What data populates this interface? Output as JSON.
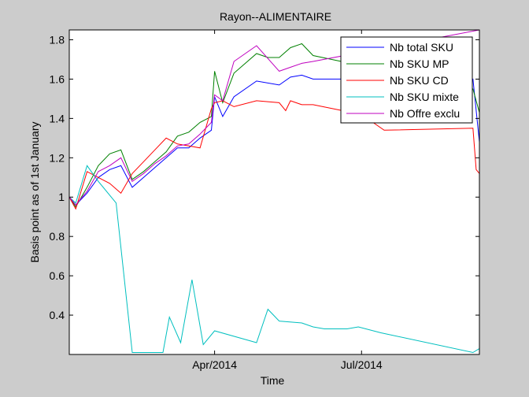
{
  "chart_data": {
    "type": "line",
    "title": "Rayon--ALIMENTAIRE",
    "xlabel": "Time",
    "ylabel": "Basis point as of 1st January",
    "x_tick_labels": [
      "Apr/2014",
      "Jul/2014"
    ],
    "x_tick_values": [
      "2014-04-01",
      "2014-07-01"
    ],
    "y_ticks": [
      0.4,
      0.6,
      0.8,
      1.0,
      1.2,
      1.4,
      1.6,
      1.8
    ],
    "y_tick_labels": [
      "0.4",
      "0.6",
      "0.8",
      "1",
      "1.2",
      "1.4",
      "1.6",
      "1.8"
    ],
    "ylim": [
      0.2,
      1.85
    ],
    "xlim": [
      "2014-01-01",
      "2014-09-12"
    ],
    "grid": false,
    "legend_position": "top-right",
    "series": [
      {
        "name": "Nb total SKU",
        "color": "#0000ff",
        "points": [
          [
            "2014-01-01",
            1.0
          ],
          [
            "2014-01-05",
            0.96
          ],
          [
            "2014-01-12",
            1.02
          ],
          [
            "2014-01-19",
            1.1
          ],
          [
            "2014-01-26",
            1.14
          ],
          [
            "2014-02-02",
            1.16
          ],
          [
            "2014-02-09",
            1.05
          ],
          [
            "2014-02-16",
            1.1
          ],
          [
            "2014-02-23",
            1.15
          ],
          [
            "2014-03-02",
            1.2
          ],
          [
            "2014-03-09",
            1.25
          ],
          [
            "2014-03-16",
            1.25
          ],
          [
            "2014-03-23",
            1.3
          ],
          [
            "2014-03-30",
            1.34
          ],
          [
            "2014-04-01",
            1.51
          ],
          [
            "2014-04-06",
            1.41
          ],
          [
            "2014-04-13",
            1.51
          ],
          [
            "2014-04-27",
            1.59
          ],
          [
            "2014-05-11",
            1.57
          ],
          [
            "2014-05-18",
            1.61
          ],
          [
            "2014-05-25",
            1.62
          ],
          [
            "2014-06-01",
            1.6
          ],
          [
            "2014-09-08",
            1.6
          ],
          [
            "2014-09-12",
            1.28
          ]
        ]
      },
      {
        "name": "Nb SKU MP",
        "color": "#008000",
        "points": [
          [
            "2014-01-01",
            1.0
          ],
          [
            "2014-01-05",
            0.95
          ],
          [
            "2014-01-12",
            1.05
          ],
          [
            "2014-01-19",
            1.16
          ],
          [
            "2014-01-26",
            1.22
          ],
          [
            "2014-02-02",
            1.24
          ],
          [
            "2014-02-09",
            1.09
          ],
          [
            "2014-02-16",
            1.13
          ],
          [
            "2014-02-23",
            1.18
          ],
          [
            "2014-03-02",
            1.23
          ],
          [
            "2014-03-09",
            1.31
          ],
          [
            "2014-03-16",
            1.33
          ],
          [
            "2014-03-23",
            1.38
          ],
          [
            "2014-03-30",
            1.41
          ],
          [
            "2014-04-01",
            1.64
          ],
          [
            "2014-04-06",
            1.48
          ],
          [
            "2014-04-13",
            1.63
          ],
          [
            "2014-04-27",
            1.73
          ],
          [
            "2014-05-04",
            1.71
          ],
          [
            "2014-05-11",
            1.71
          ],
          [
            "2014-05-18",
            1.76
          ],
          [
            "2014-05-25",
            1.78
          ],
          [
            "2014-06-01",
            1.72
          ],
          [
            "2014-09-08",
            1.55
          ],
          [
            "2014-09-12",
            1.43
          ]
        ]
      },
      {
        "name": "Nb SKU CD",
        "color": "#ff0000",
        "points": [
          [
            "2014-01-01",
            1.0
          ],
          [
            "2014-01-05",
            0.94
          ],
          [
            "2014-01-12",
            1.13
          ],
          [
            "2014-01-19",
            1.1
          ],
          [
            "2014-01-26",
            1.07
          ],
          [
            "2014-02-02",
            1.02
          ],
          [
            "2014-02-09",
            1.12
          ],
          [
            "2014-02-16",
            1.18
          ],
          [
            "2014-02-23",
            1.24
          ],
          [
            "2014-03-02",
            1.3
          ],
          [
            "2014-03-09",
            1.27
          ],
          [
            "2014-03-16",
            1.26
          ],
          [
            "2014-03-23",
            1.25
          ],
          [
            "2014-03-30",
            1.45
          ],
          [
            "2014-04-01",
            1.48
          ],
          [
            "2014-04-06",
            1.49
          ],
          [
            "2014-04-13",
            1.46
          ],
          [
            "2014-04-27",
            1.49
          ],
          [
            "2014-05-11",
            1.48
          ],
          [
            "2014-05-15",
            1.44
          ],
          [
            "2014-05-18",
            1.49
          ],
          [
            "2014-05-25",
            1.47
          ],
          [
            "2014-06-01",
            1.47
          ],
          [
            "2014-07-01",
            1.42
          ],
          [
            "2014-07-15",
            1.34
          ],
          [
            "2014-09-08",
            1.35
          ],
          [
            "2014-09-10",
            1.14
          ],
          [
            "2014-09-12",
            1.12
          ]
        ]
      },
      {
        "name": "Nb SKU mixte",
        "color": "#00bfbf",
        "points": [
          [
            "2014-01-01",
            1.0
          ],
          [
            "2014-01-05",
            0.97
          ],
          [
            "2014-01-12",
            1.16
          ],
          [
            "2014-01-19",
            1.08
          ],
          [
            "2014-01-30",
            0.97
          ],
          [
            "2014-02-09",
            0.21
          ],
          [
            "2014-02-16",
            0.21
          ],
          [
            "2014-02-28",
            0.21
          ],
          [
            "2014-03-04",
            0.39
          ],
          [
            "2014-03-11",
            0.26
          ],
          [
            "2014-03-18",
            0.58
          ],
          [
            "2014-03-25",
            0.25
          ],
          [
            "2014-04-01",
            0.32
          ],
          [
            "2014-04-27",
            0.26
          ],
          [
            "2014-05-04",
            0.43
          ],
          [
            "2014-05-11",
            0.37
          ],
          [
            "2014-05-25",
            0.36
          ],
          [
            "2014-06-01",
            0.34
          ],
          [
            "2014-06-08",
            0.33
          ],
          [
            "2014-06-22",
            0.33
          ],
          [
            "2014-06-29",
            0.34
          ],
          [
            "2014-07-13",
            0.31
          ],
          [
            "2014-09-08",
            0.21
          ],
          [
            "2014-09-12",
            0.23
          ]
        ]
      },
      {
        "name": "Nb Offre exclu",
        "color": "#bf00bf",
        "points": [
          [
            "2014-01-01",
            1.0
          ],
          [
            "2014-01-05",
            0.96
          ],
          [
            "2014-01-12",
            1.03
          ],
          [
            "2014-01-19",
            1.13
          ],
          [
            "2014-01-26",
            1.16
          ],
          [
            "2014-02-02",
            1.2
          ],
          [
            "2014-02-09",
            1.08
          ],
          [
            "2014-02-16",
            1.12
          ],
          [
            "2014-02-23",
            1.17
          ],
          [
            "2014-03-02",
            1.21
          ],
          [
            "2014-03-09",
            1.26
          ],
          [
            "2014-03-16",
            1.27
          ],
          [
            "2014-03-23",
            1.32
          ],
          [
            "2014-03-30",
            1.38
          ],
          [
            "2014-04-01",
            1.52
          ],
          [
            "2014-04-06",
            1.49
          ],
          [
            "2014-04-13",
            1.69
          ],
          [
            "2014-04-27",
            1.77
          ],
          [
            "2014-05-11",
            1.64
          ],
          [
            "2014-05-18",
            1.66
          ],
          [
            "2014-05-25",
            1.68
          ],
          [
            "2014-06-01",
            1.69
          ],
          [
            "2014-09-12",
            1.85
          ]
        ]
      }
    ]
  }
}
